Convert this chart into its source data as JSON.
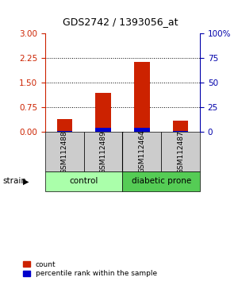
{
  "title": "GDS2742 / 1393056_at",
  "samples": [
    "GSM112488",
    "GSM112489",
    "GSM112464",
    "GSM112487"
  ],
  "red_values": [
    0.4,
    1.2,
    2.15,
    0.35
  ],
  "blue_values": [
    0.03,
    0.12,
    0.12,
    0.03
  ],
  "left_yticks": [
    0,
    0.75,
    1.5,
    2.25,
    3
  ],
  "right_yticks": [
    0,
    25,
    50,
    75,
    100
  ],
  "right_yticklabels": [
    "0",
    "25",
    "50",
    "75",
    "100%"
  ],
  "ylim_left": [
    0,
    3
  ],
  "ylim_right": [
    0,
    100
  ],
  "bar_width": 0.4,
  "red_color": "#CC2200",
  "blue_color": "#0000CC",
  "left_tick_color": "#CC2200",
  "right_tick_color": "#0000AA",
  "sample_box_color": "#CCCCCC",
  "control_color": "#AAFFAA",
  "diabetic_color": "#55CC55",
  "legend_count": "count",
  "legend_pct": "percentile rank within the sample"
}
